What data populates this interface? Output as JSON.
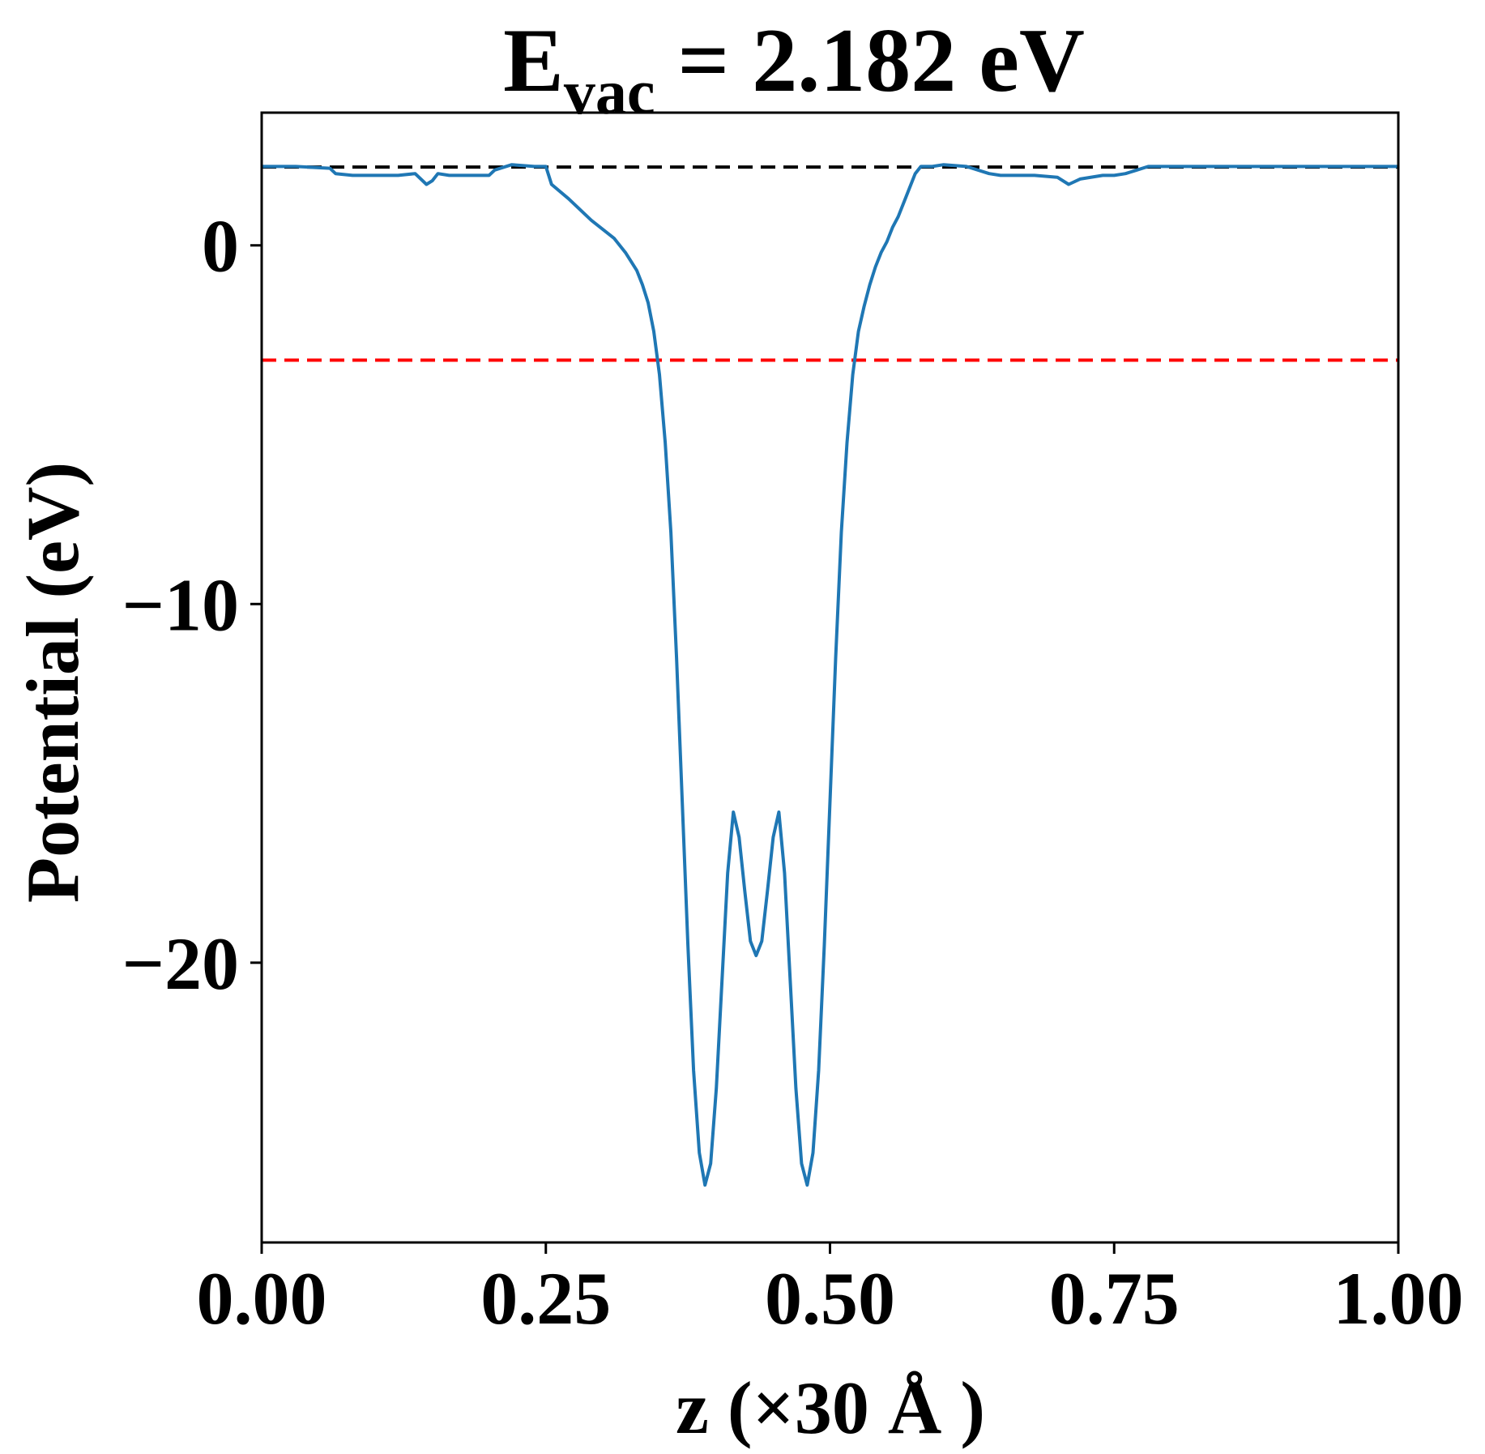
{
  "chart_data": {
    "type": "line",
    "title": {
      "main": "E",
      "subscript": "vac",
      "rest": " = 2.182 eV"
    },
    "xlabel": "z (×30 Å )",
    "ylabel": "Potential (eV)",
    "xlim": [
      0.0,
      1.0
    ],
    "ylim": [
      -27.8,
      3.7
    ],
    "xticks": [
      {
        "value": 0.0,
        "label": "0.00"
      },
      {
        "value": 0.25,
        "label": "0.25"
      },
      {
        "value": 0.5,
        "label": "0.50"
      },
      {
        "value": 0.75,
        "label": "0.75"
      },
      {
        "value": 1.0,
        "label": "1.00"
      }
    ],
    "yticks": [
      {
        "value": 0,
        "label": "0"
      },
      {
        "value": -10,
        "label": "−10"
      },
      {
        "value": -20,
        "label": "−20"
      }
    ],
    "grid": false,
    "hlines": [
      {
        "y": 2.182,
        "color": "#000000",
        "style": "dashed"
      },
      {
        "y": -3.2,
        "color": "#ff0000",
        "style": "dashed"
      }
    ],
    "series": [
      {
        "color": "#1f77b4",
        "x": [
          0.0,
          0.03,
          0.06,
          0.065,
          0.08,
          0.1,
          0.12,
          0.135,
          0.145,
          0.15,
          0.155,
          0.165,
          0.18,
          0.2,
          0.205,
          0.22,
          0.24,
          0.25,
          0.255,
          0.27,
          0.29,
          0.31,
          0.32,
          0.33,
          0.335,
          0.34,
          0.345,
          0.35,
          0.355,
          0.36,
          0.365,
          0.37,
          0.375,
          0.38,
          0.385,
          0.39,
          0.395,
          0.4,
          0.405,
          0.41,
          0.415,
          0.42,
          0.425,
          0.43,
          0.435,
          0.44,
          0.445,
          0.45,
          0.455,
          0.46,
          0.465,
          0.47,
          0.475,
          0.48,
          0.485,
          0.49,
          0.495,
          0.5,
          0.505,
          0.51,
          0.515,
          0.52,
          0.525,
          0.53,
          0.535,
          0.54,
          0.545,
          0.55,
          0.555,
          0.56,
          0.565,
          0.57,
          0.575,
          0.58,
          0.59,
          0.6,
          0.62,
          0.64,
          0.65,
          0.66,
          0.68,
          0.7,
          0.71,
          0.72,
          0.74,
          0.75,
          0.76,
          0.765,
          0.77,
          0.78,
          0.8,
          0.84,
          0.86,
          0.9,
          0.95,
          1.0
        ],
        "y": [
          2.2,
          2.2,
          2.15,
          2.0,
          1.95,
          1.95,
          1.95,
          2.0,
          1.7,
          1.8,
          2.0,
          1.95,
          1.95,
          1.95,
          2.1,
          2.25,
          2.2,
          2.2,
          1.7,
          1.3,
          0.7,
          0.2,
          -0.2,
          -0.7,
          -1.1,
          -1.6,
          -2.4,
          -3.6,
          -5.5,
          -8.0,
          -11.5,
          -15.5,
          -19.5,
          -23.0,
          -25.3,
          -26.2,
          -25.6,
          -23.5,
          -20.5,
          -17.5,
          -15.8,
          -16.5,
          -18.0,
          -19.4,
          -19.8,
          -19.4,
          -18.0,
          -16.5,
          -15.8,
          -17.5,
          -20.5,
          -23.5,
          -25.6,
          -26.2,
          -25.3,
          -23.0,
          -19.5,
          -15.5,
          -11.5,
          -8.0,
          -5.5,
          -3.6,
          -2.4,
          -1.7,
          -1.1,
          -0.6,
          -0.2,
          0.1,
          0.5,
          0.8,
          1.2,
          1.6,
          2.0,
          2.2,
          2.2,
          2.25,
          2.2,
          2.0,
          1.95,
          1.95,
          1.95,
          1.9,
          1.7,
          1.85,
          1.95,
          1.95,
          2.0,
          2.05,
          2.1,
          2.2,
          2.2,
          2.2,
          2.2,
          2.2,
          2.2,
          2.2
        ]
      }
    ]
  }
}
